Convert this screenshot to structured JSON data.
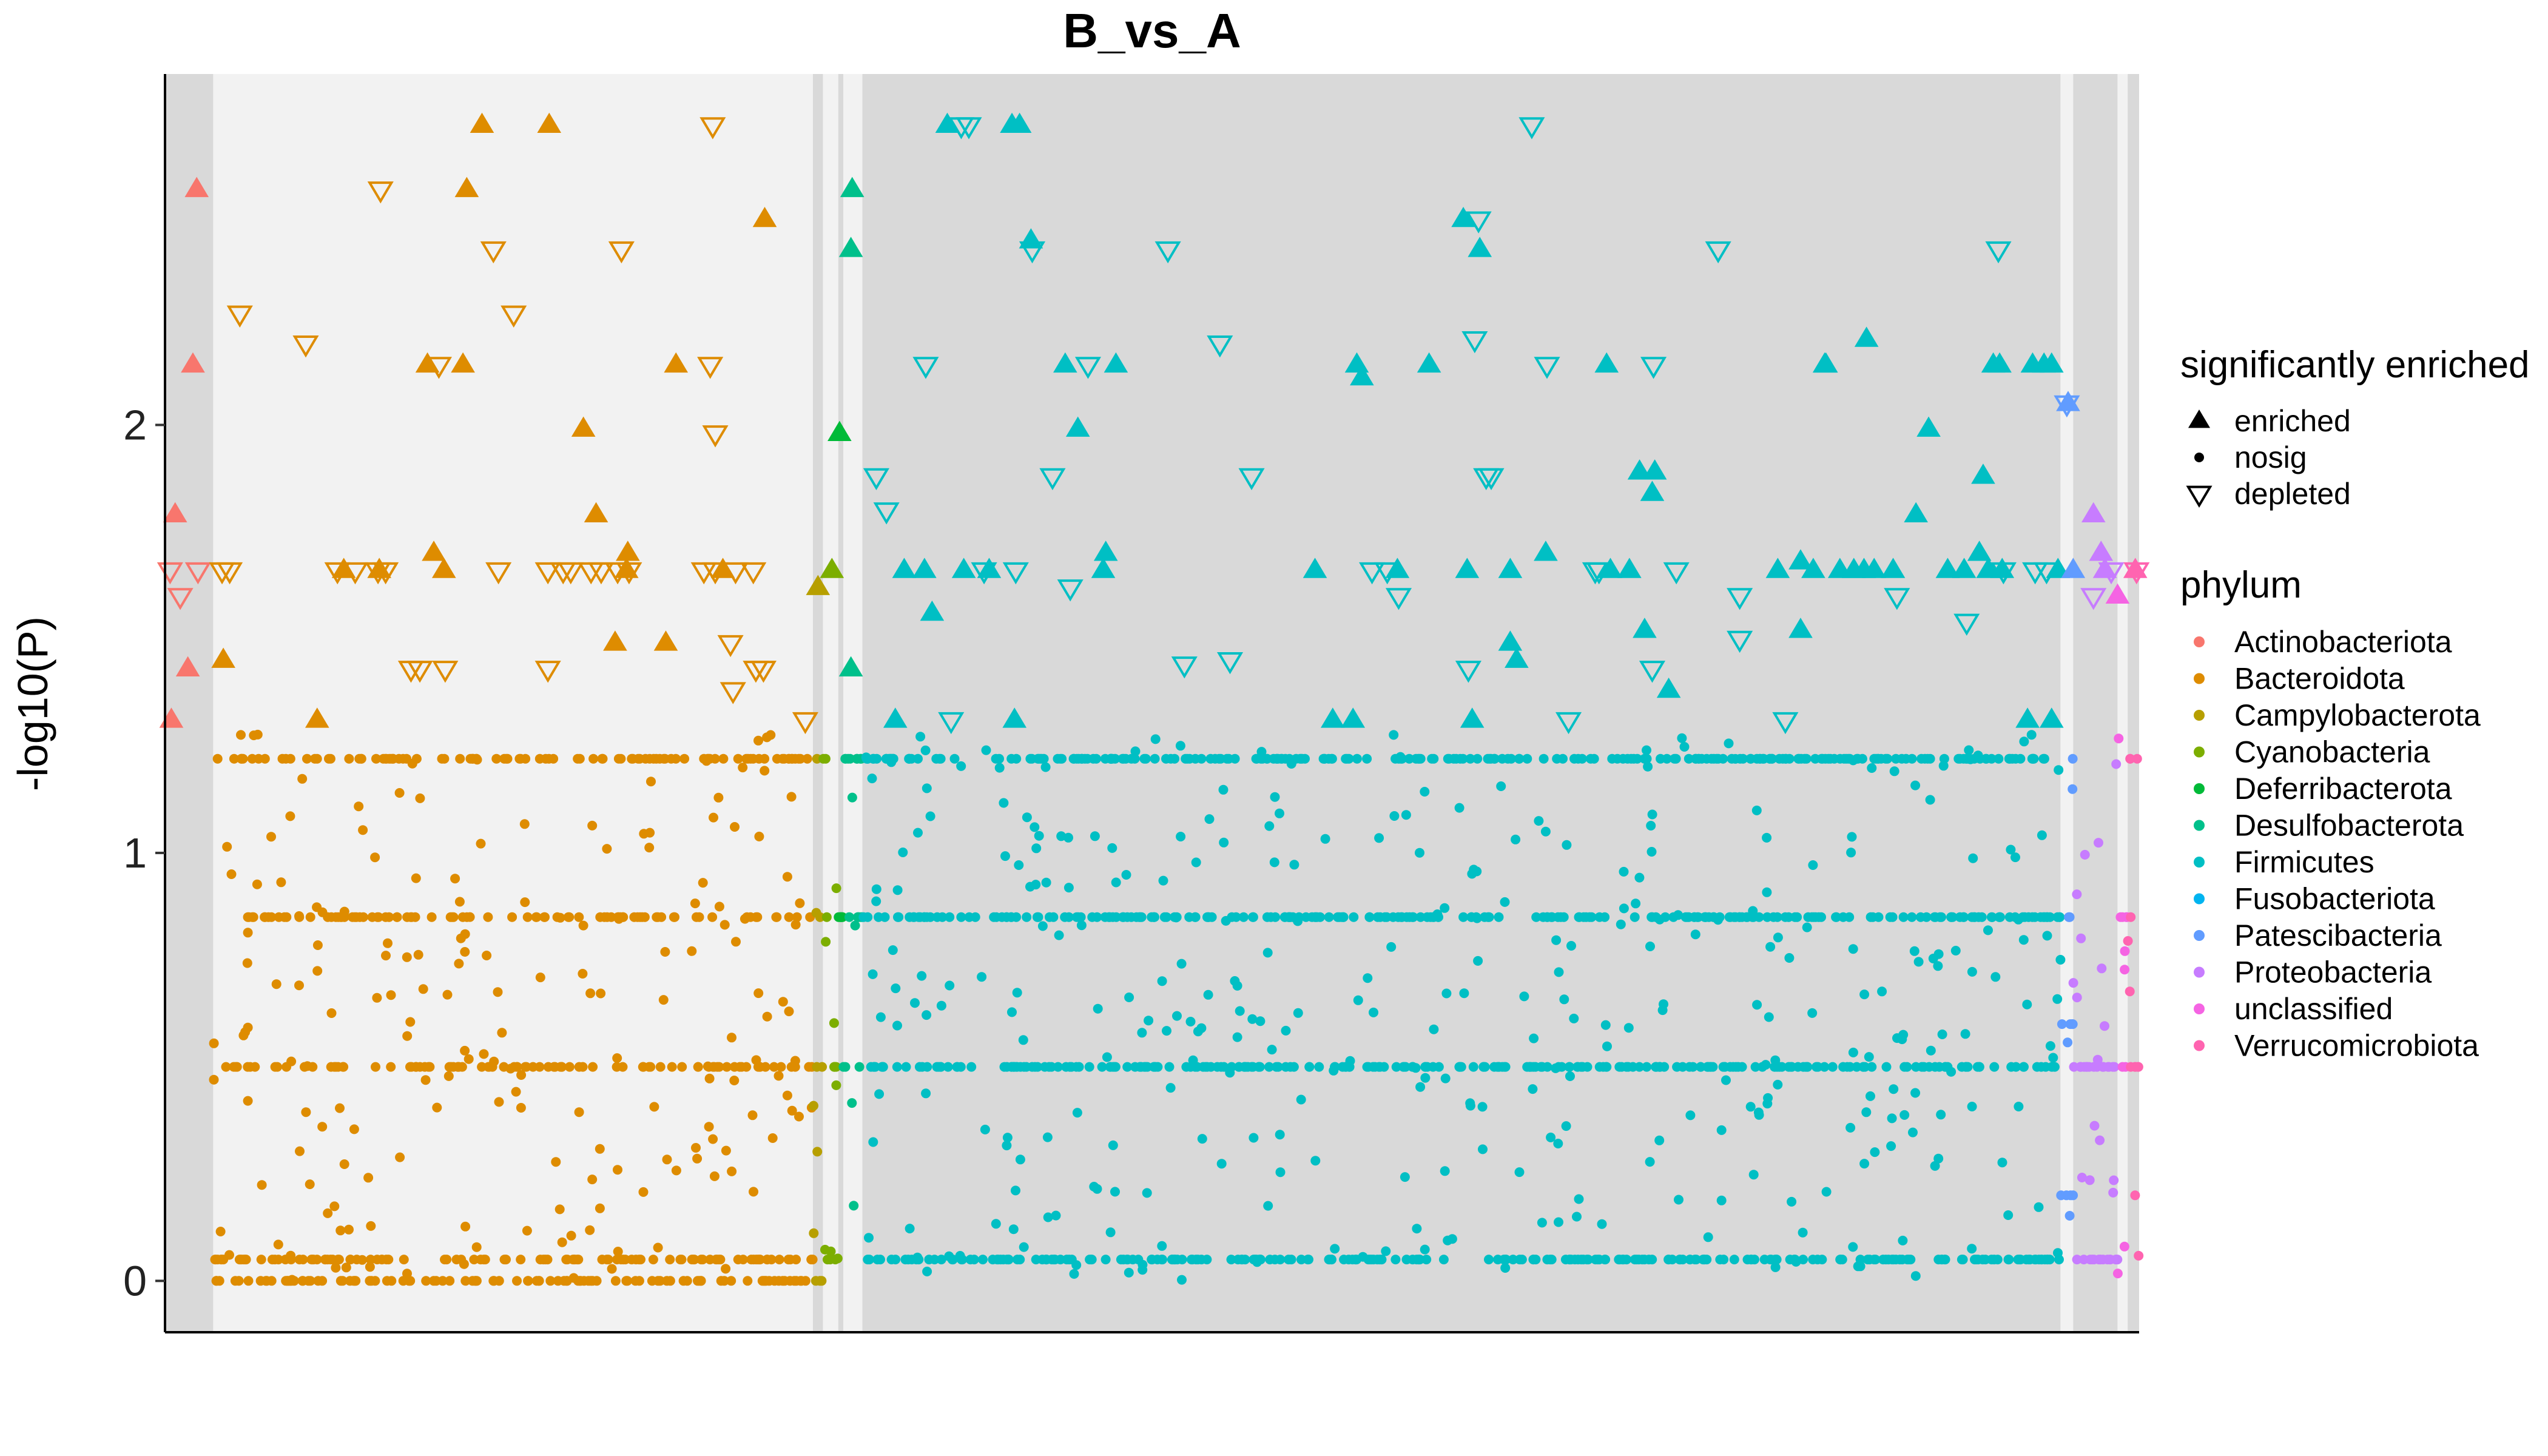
{
  "chart_data": {
    "type": "scatter",
    "title": "B_vs_A",
    "xlabel": "",
    "ylabel": "-log10(P)",
    "ylim": [
      -0.12,
      2.82
    ],
    "yticks": [
      0,
      1,
      2
    ],
    "grid": false,
    "legend_position": "right",
    "shape_legend": {
      "title": "significantly enriched",
      "items": [
        {
          "label": "enriched",
          "shape": "triangle-up-filled"
        },
        {
          "label": "nosig",
          "shape": "dot"
        },
        {
          "label": "depleted",
          "shape": "triangle-down-open"
        }
      ]
    },
    "color_legend": {
      "title": "phylum",
      "items": [
        {
          "label": "Actinobacteriota",
          "color": "#F8766D"
        },
        {
          "label": "Bacteroidota",
          "color": "#DE8C00"
        },
        {
          "label": "Campylobacterota",
          "color": "#B79F00"
        },
        {
          "label": "Cyanobacteria",
          "color": "#7CAE00"
        },
        {
          "label": "Deferribacterota",
          "color": "#00BA38"
        },
        {
          "label": "Desulfobacterota",
          "color": "#00C08B"
        },
        {
          "label": "Firmicutes",
          "color": "#00BFC4"
        },
        {
          "label": "Fusobacteriota",
          "color": "#00B4F0"
        },
        {
          "label": "Patescibacteria",
          "color": "#619CFF"
        },
        {
          "label": "Proteobacteria",
          "color": "#C77CFF"
        },
        {
          "label": "unclassified",
          "color": "#F564E3"
        },
        {
          "label": "Verrucomicrobiota",
          "color": "#FF64B0"
        }
      ]
    },
    "x_range": [
      0,
      1557
    ],
    "phylum_groups": [
      {
        "name": "Actinobacteriota",
        "x_start": 0,
        "x_end": 38,
        "enriched": [
          [
            25,
            2.55
          ],
          [
            22,
            2.14
          ],
          [
            8,
            1.79
          ],
          [
            18,
            1.43
          ],
          [
            5,
            1.31
          ]
        ],
        "depleted": [
          [
            4,
            1.66
          ],
          [
            26,
            1.66
          ],
          [
            12,
            1.6
          ]
        ]
      },
      {
        "name": "Bacteroidota",
        "x_start": 38,
        "x_end": 511,
        "enriched": [
          [
            238,
            2.55
          ],
          [
            250,
            2.7
          ],
          [
            303,
            2.7
          ],
          [
            473,
            2.48
          ],
          [
            207,
            2.14
          ],
          [
            235,
            2.14
          ],
          [
            403,
            2.14
          ],
          [
            330,
            1.99
          ],
          [
            340,
            1.79
          ],
          [
            212,
            1.7
          ],
          [
            365,
            1.7
          ],
          [
            220,
            1.66
          ],
          [
            141,
            1.66
          ],
          [
            169,
            1.66
          ],
          [
            364,
            1.66
          ],
          [
            440,
            1.66
          ],
          [
            355,
            1.49
          ],
          [
            395,
            1.49
          ],
          [
            46,
            1.45
          ],
          [
            120,
            1.31
          ]
        ],
        "depleted": [
          [
            170,
            2.55
          ],
          [
            432,
            2.7
          ],
          [
            259,
            2.41
          ],
          [
            360,
            2.41
          ],
          [
            59,
            2.26
          ],
          [
            275,
            2.26
          ],
          [
            111,
            2.19
          ],
          [
            216,
            2.14
          ],
          [
            430,
            2.14
          ],
          [
            434,
            1.98
          ],
          [
            45,
            1.66
          ],
          [
            51,
            1.66
          ],
          [
            136,
            1.66
          ],
          [
            150,
            1.66
          ],
          [
            168,
            1.66
          ],
          [
            174,
            1.66
          ],
          [
            263,
            1.66
          ],
          [
            302,
            1.66
          ],
          [
            314,
            1.66
          ],
          [
            320,
            1.66
          ],
          [
            336,
            1.66
          ],
          [
            344,
            1.66
          ],
          [
            357,
            1.66
          ],
          [
            366,
            1.66
          ],
          [
            425,
            1.66
          ],
          [
            434,
            1.66
          ],
          [
            450,
            1.66
          ],
          [
            464,
            1.66
          ],
          [
            194,
            1.43
          ],
          [
            201,
            1.43
          ],
          [
            221,
            1.43
          ],
          [
            302,
            1.43
          ],
          [
            446,
            1.49
          ],
          [
            466,
            1.43
          ],
          [
            472,
            1.43
          ],
          [
            448,
            1.38
          ],
          [
            505,
            1.31
          ]
        ],
        "nosig_bands": [
          0.0,
          0.05,
          0.5,
          0.85,
          1.22
        ]
      },
      {
        "name": "Campylobacterota",
        "x_start": 511,
        "x_end": 519,
        "enriched": [
          [
            515,
            1.62
          ]
        ],
        "depleted": [],
        "nosig_bands": [
          0.0,
          0.5,
          0.85,
          1.22
        ]
      },
      {
        "name": "Cyanobacteria",
        "x_start": 519,
        "x_end": 531,
        "enriched": [
          [
            526,
            1.66
          ]
        ],
        "depleted": [],
        "nosig_bands": [
          0.05,
          0.5,
          0.85,
          1.22
        ]
      },
      {
        "name": "Deferribacterota",
        "x_start": 531,
        "x_end": 535,
        "enriched": [
          [
            532,
            1.98
          ]
        ],
        "depleted": [],
        "nosig_bands": [
          0.5,
          0.85
        ]
      },
      {
        "name": "Desulfobacterota",
        "x_start": 535,
        "x_end": 550,
        "enriched": [
          [
            542,
            2.55
          ],
          [
            541,
            2.41
          ],
          [
            541,
            1.43
          ]
        ],
        "depleted": [],
        "nosig_bands": [
          0.5,
          0.85,
          1.22
        ]
      },
      {
        "name": "Firmicutes",
        "x_start": 550,
        "x_end": 1495,
        "enriched": [
          [
            617,
            2.7
          ],
          [
            668,
            2.7
          ],
          [
            674,
            2.7
          ],
          [
            683,
            2.43
          ],
          [
            1024,
            2.48
          ],
          [
            1037,
            2.41
          ],
          [
            710,
            2.14
          ],
          [
            750,
            2.14
          ],
          [
            940,
            2.14
          ],
          [
            944,
            2.11
          ],
          [
            997,
            2.14
          ],
          [
            1137,
            2.14
          ],
          [
            1342,
            2.2
          ],
          [
            1310,
            2.14
          ],
          [
            1309,
            2.14
          ],
          [
            1442,
            2.14
          ],
          [
            1447,
            2.14
          ],
          [
            1473,
            2.14
          ],
          [
            1482,
            2.14
          ],
          [
            1488,
            2.14
          ],
          [
            720,
            1.99
          ],
          [
            1391,
            1.99
          ],
          [
            1163,
            1.89
          ],
          [
            1175,
            1.89
          ],
          [
            1173,
            1.84
          ],
          [
            1434,
            1.88
          ],
          [
            1381,
            1.79
          ],
          [
            742,
            1.7
          ],
          [
            583,
            1.66
          ],
          [
            599,
            1.66
          ],
          [
            630,
            1.66
          ],
          [
            650,
            1.66
          ],
          [
            740,
            1.66
          ],
          [
            907,
            1.66
          ],
          [
            972,
            1.66
          ],
          [
            1027,
            1.66
          ],
          [
            1061,
            1.66
          ],
          [
            1140,
            1.66
          ],
          [
            1155,
            1.66
          ],
          [
            1272,
            1.66
          ],
          [
            1300,
            1.66
          ],
          [
            1321,
            1.66
          ],
          [
            1332,
            1.66
          ],
          [
            1348,
            1.66
          ],
          [
            1363,
            1.66
          ],
          [
            1406,
            1.66
          ],
          [
            1419,
            1.66
          ],
          [
            1438,
            1.66
          ],
          [
            1449,
            1.66
          ],
          [
            1493,
            1.66
          ],
          [
            1089,
            1.7
          ],
          [
            1290,
            1.68
          ],
          [
            1340,
            1.66
          ],
          [
            1431,
            1.7
          ],
          [
            605,
            1.56
          ],
          [
            1167,
            1.52
          ],
          [
            1290,
            1.52
          ],
          [
            1061,
            1.49
          ],
          [
            1186,
            1.38
          ],
          [
            576,
            1.31
          ],
          [
            670,
            1.31
          ],
          [
            921,
            1.31
          ],
          [
            937,
            1.31
          ],
          [
            1031,
            1.31
          ],
          [
            1469,
            1.31
          ],
          [
            1488,
            1.31
          ],
          [
            1066,
            1.45
          ]
        ],
        "depleted": [
          [
            628,
            2.7
          ],
          [
            634,
            2.7
          ],
          [
            1078,
            2.7
          ],
          [
            684,
            2.41
          ],
          [
            791,
            2.41
          ],
          [
            1036,
            2.48
          ],
          [
            1033,
            2.2
          ],
          [
            1225,
            2.41
          ],
          [
            1446,
            2.41
          ],
          [
            832,
            2.19
          ],
          [
            600,
            2.14
          ],
          [
            728,
            2.14
          ],
          [
            1090,
            2.14
          ],
          [
            1174,
            2.14
          ],
          [
            561,
            1.88
          ],
          [
            569,
            1.8
          ],
          [
            700,
            1.88
          ],
          [
            857,
            1.88
          ],
          [
            1042,
            1.88
          ],
          [
            1046,
            1.88
          ],
          [
            646,
            1.66
          ],
          [
            671,
            1.66
          ],
          [
            714,
            1.62
          ],
          [
            952,
            1.66
          ],
          [
            964,
            1.66
          ],
          [
            1128,
            1.66
          ],
          [
            1131,
            1.66
          ],
          [
            1192,
            1.66
          ],
          [
            1242,
            1.6
          ],
          [
            1366,
            1.6
          ],
          [
            1421,
            1.54
          ],
          [
            1450,
            1.66
          ],
          [
            1475,
            1.66
          ],
          [
            1484,
            1.66
          ],
          [
            973,
            1.6
          ],
          [
            1242,
            1.5
          ],
          [
            840,
            1.45
          ],
          [
            1028,
            1.43
          ],
          [
            1173,
            1.43
          ],
          [
            1107,
            1.31
          ],
          [
            1278,
            1.31
          ],
          [
            620,
            1.31
          ],
          [
            804,
            1.44
          ]
        ],
        "nosig_bands": [
          0.05,
          0.5,
          0.85,
          1.22
        ]
      },
      {
        "name": "Patescibacteria",
        "x_start": 1495,
        "x_end": 1505,
        "enriched": [
          [
            1501,
            2.05
          ],
          [
            1505,
            1.66
          ]
        ],
        "depleted": [
          [
            1500,
            2.05
          ]
        ],
        "nosig_bands": [
          0.2,
          0.6,
          0.85,
          1.22
        ]
      },
      {
        "name": "Proteobacteria",
        "x_start": 1505,
        "x_end": 1540,
        "enriched": [
          [
            1521,
            1.79
          ],
          [
            1527,
            1.7
          ],
          [
            1530,
            1.66
          ]
        ],
        "depleted": [
          [
            1521,
            1.6
          ],
          [
            1535,
            1.66
          ]
        ],
        "nosig_bands": [
          0.05,
          0.5
        ]
      },
      {
        "name": "unclassified",
        "x_start": 1540,
        "x_end": 1548,
        "enriched": [
          [
            1540,
            1.6
          ]
        ],
        "depleted": [],
        "nosig_bands": [
          0.5,
          0.85
        ]
      },
      {
        "name": "Verrucomicrobiota",
        "x_start": 1548,
        "x_end": 1557,
        "enriched": [
          [
            1554,
            1.66
          ]
        ],
        "depleted": [
          [
            1555,
            1.66
          ]
        ],
        "nosig_bands": [
          0.2,
          0.5,
          0.85,
          1.22
        ]
      }
    ]
  }
}
